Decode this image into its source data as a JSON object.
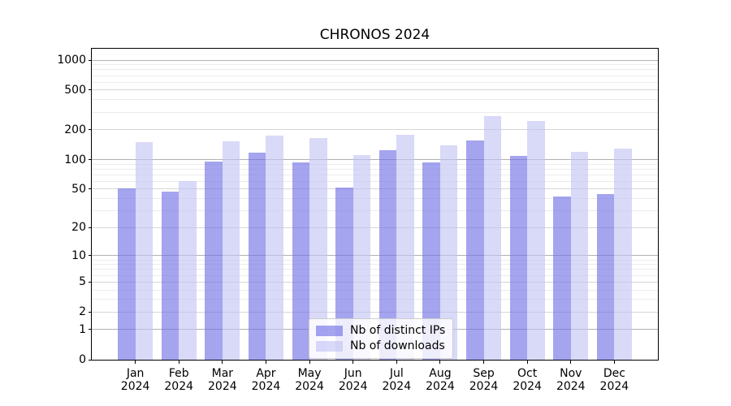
{
  "title": "CHRONOS 2024",
  "chart_data": {
    "type": "bar",
    "title": "CHRONOS 2024",
    "categories": [
      "Jan 2024",
      "Feb 2024",
      "Mar 2024",
      "Apr 2024",
      "May 2024",
      "Jun 2024",
      "Jul 2024",
      "Aug 2024",
      "Sep 2024",
      "Oct 2024",
      "Nov 2024",
      "Dec 2024"
    ],
    "series": [
      {
        "name": "Nb of distinct IPs",
        "color": "#6c6ce5",
        "alpha": 0.62,
        "rendered_color": "#a4a4ef",
        "values": [
          51,
          47,
          95,
          117,
          94,
          52,
          125,
          94,
          155,
          108,
          42,
          45
        ]
      },
      {
        "name": "Nb of downloads",
        "color": "#c2c2f4",
        "alpha": 0.62,
        "rendered_color": "#d9d9f8",
        "values": [
          150,
          60,
          152,
          173,
          166,
          110,
          178,
          140,
          272,
          243,
          120,
          130
        ]
      }
    ],
    "xlabel": "",
    "ylabel": "",
    "yscale": "log1p",
    "yticks": [
      0,
      1,
      2,
      5,
      10,
      20,
      50,
      100,
      200,
      500,
      1000
    ],
    "ylim": [
      0,
      1300
    ],
    "grid": true,
    "legend_position": "lower-center",
    "axis_color": "#000000",
    "grid_major_color": "#b2b2b2",
    "grid_mid_color": "#d6d6d6",
    "grid_minor_color": "#ececec"
  }
}
